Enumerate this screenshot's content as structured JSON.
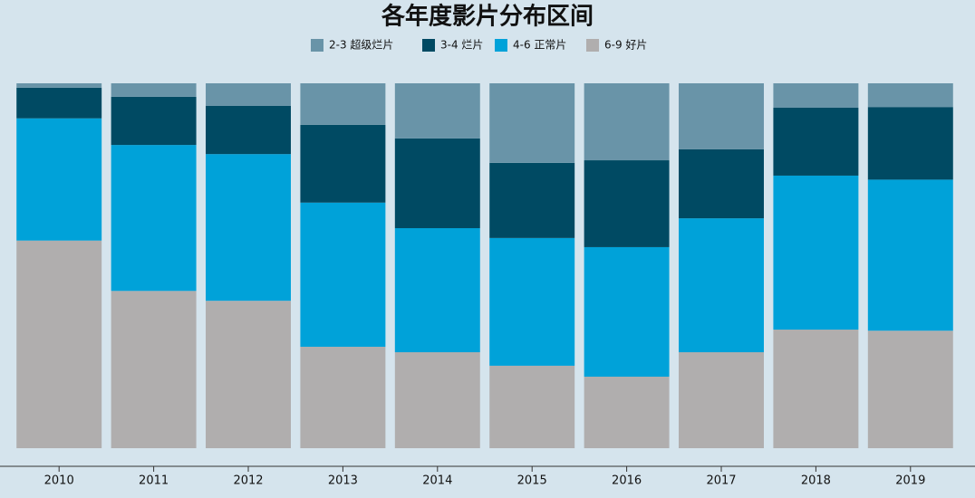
{
  "chart_data": {
    "type": "stacked_bar",
    "title": "各年度影片分布区间",
    "categories": [
      "2010",
      "2011",
      "2012",
      "2013",
      "2014",
      "2015",
      "2016",
      "2017",
      "2018",
      "2019"
    ],
    "series": [
      {
        "name": "2-3 超级烂片",
        "color": "#6994a8",
        "values": [
          1.2,
          3.7,
          6.2,
          11.4,
          15.1,
          21.8,
          21.1,
          18.1,
          6.7,
          6.5
        ]
      },
      {
        "name": "3-4 烂片",
        "color": "#004a63",
        "values": [
          8.4,
          13.2,
          13.2,
          21.3,
          24.6,
          20.6,
          23.8,
          18.9,
          18.6,
          19.9
        ]
      },
      {
        "name": "4-6 正常片",
        "color": "#00a2d9",
        "values": [
          33.5,
          40.0,
          40.2,
          39.5,
          34.0,
          35.0,
          35.5,
          36.7,
          42.2,
          41.4
        ]
      },
      {
        "name": "6-9 好片",
        "color": "#b0aeae",
        "values": [
          56.9,
          43.1,
          40.4,
          27.8,
          26.3,
          22.6,
          19.6,
          26.3,
          32.5,
          32.2
        ]
      }
    ],
    "ylim": [
      0,
      100
    ],
    "legend": "top"
  }
}
